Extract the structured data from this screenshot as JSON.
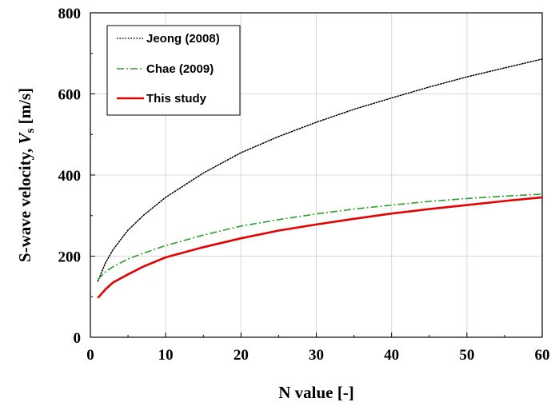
{
  "chart_data": {
    "type": "line",
    "xlabel": "N value [-]",
    "ylabel": {
      "prefix": "S-wave velocity, ",
      "symbol": "V",
      "subscript": "s",
      "unit": " [m/s]"
    },
    "xlim": [
      0,
      60
    ],
    "ylim": [
      0,
      800
    ],
    "xticks": [
      "0",
      "10",
      "20",
      "30",
      "40",
      "50",
      "60"
    ],
    "yticks": [
      "0",
      "200",
      "400",
      "600",
      "800"
    ],
    "grid": true,
    "legend_position": "top-left",
    "series": [
      {
        "name": "Jeong (2008)",
        "color": "#000000",
        "style": "dotted",
        "x": [
          1,
          2,
          3,
          5,
          7,
          10,
          15,
          20,
          25,
          30,
          35,
          40,
          45,
          50,
          55,
          60
        ],
        "y": [
          138,
          183,
          216,
          264,
          300,
          345,
          405,
          455,
          495,
          530,
          562,
          590,
          617,
          642,
          664,
          686
        ]
      },
      {
        "name": "Chae (2009)",
        "color": "#2ca02c",
        "style": "dashdot",
        "x": [
          1,
          2,
          3,
          5,
          7,
          10,
          15,
          20,
          25,
          30,
          35,
          40,
          45,
          50,
          55,
          60
        ],
        "y": [
          143,
          161,
          174,
          193,
          207,
          226,
          252,
          274,
          290,
          304,
          316,
          326,
          335,
          342,
          348,
          353
        ]
      },
      {
        "name": "This study",
        "color": "#e60000",
        "style": "solid",
        "x": [
          1,
          2,
          3,
          5,
          7,
          10,
          15,
          20,
          25,
          30,
          35,
          40,
          45,
          50,
          55,
          60
        ],
        "y": [
          97,
          118,
          135,
          155,
          174,
          197,
          222,
          244,
          263,
          278,
          292,
          305,
          316,
          326,
          336,
          345
        ]
      }
    ]
  }
}
